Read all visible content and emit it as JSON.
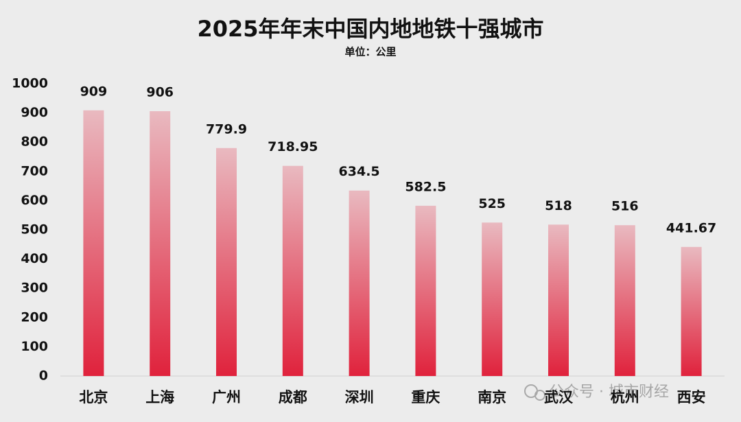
{
  "chart_data": {
    "type": "bar",
    "title": "2025年年末中国内地地铁十强城市",
    "subtitle": "单位：公里",
    "watermark": "公众号 · 城市财经",
    "categories": [
      "北京",
      "上海",
      "广州",
      "成都",
      "深圳",
      "重庆",
      "南京",
      "武汉",
      "杭州",
      "西安"
    ],
    "values": [
      909,
      906,
      779.9,
      718.95,
      634.5,
      582.5,
      525,
      518,
      516,
      441.67
    ],
    "color": "#e0223c",
    "ylim": [
      0,
      1000
    ],
    "yticks": [
      0,
      100,
      200,
      300,
      400,
      500,
      600,
      700,
      800,
      900,
      1000
    ],
    "grid": false
  }
}
